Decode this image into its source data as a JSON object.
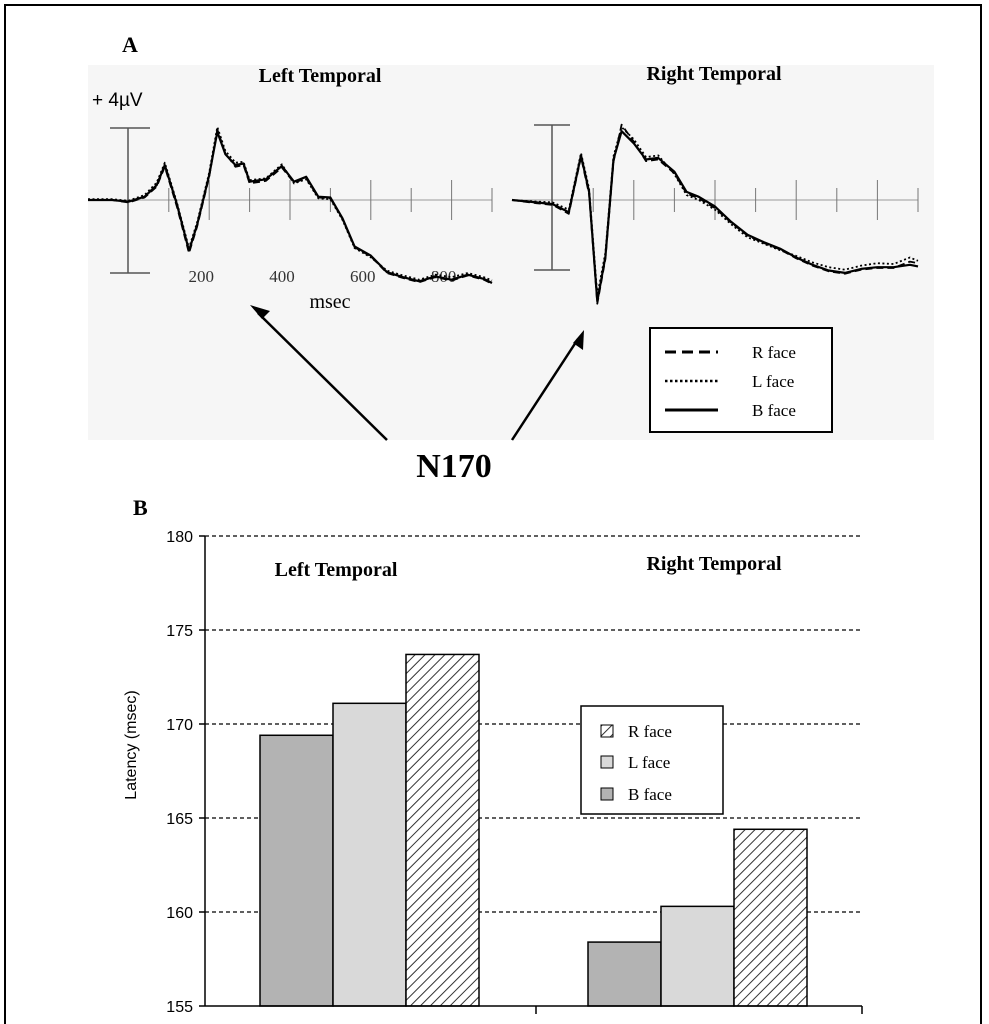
{
  "panel_a": {
    "label": "A",
    "left_title": "Left Temporal",
    "right_title": "Right Temporal",
    "scale_label": "+ 4µV",
    "x_ticks": [
      "200",
      "400",
      "600",
      "800"
    ],
    "x_unit": "msec",
    "callout": "N170",
    "legend": [
      {
        "label": "R face",
        "style": "dashed"
      },
      {
        "label": "L face",
        "style": "dotted"
      },
      {
        "label": "B face",
        "style": "solid"
      }
    ]
  },
  "panel_b": {
    "label": "B",
    "left_title": "Left Temporal",
    "right_title": "Right Temporal",
    "ylabel": "Latency (msec)",
    "legend": [
      {
        "label": "R face",
        "fill": "hatch"
      },
      {
        "label": "L face",
        "fill": "#d9d9d9"
      },
      {
        "label": "B face",
        "fill": "#b3b3b3"
      }
    ]
  },
  "chart_data": [
    {
      "type": "line",
      "title": "Left Temporal",
      "xlabel": "msec",
      "x_ticks": [
        200,
        400,
        600,
        800
      ],
      "xlim": [
        -100,
        900
      ],
      "scale_bar": "+ 4µV",
      "series": [
        {
          "name": "B face",
          "style": "solid",
          "x": [
            -100,
            -40,
            0,
            40,
            70,
            90,
            120,
            150,
            170,
            200,
            220,
            240,
            265,
            285,
            300,
            340,
            380,
            410,
            440,
            470,
            500,
            530,
            560,
            600,
            640,
            680,
            720,
            760,
            800,
            840,
            880,
            900
          ],
          "y": [
            0,
            0,
            -0.2,
            0.4,
            1.8,
            4.2,
            -0.5,
            -6.1,
            -3,
            3,
            8.2,
            5.5,
            4.2,
            4.4,
            2.2,
            2.5,
            4.1,
            2.2,
            2.8,
            0.4,
            0.3,
            -2.2,
            -5.6,
            -6.7,
            -8.7,
            -9.3,
            -9.8,
            -9.2,
            -9.6,
            -9.0,
            -9.5,
            -10.0
          ]
        },
        {
          "name": "L face",
          "style": "dotted",
          "x": [
            -100,
            -40,
            0,
            40,
            70,
            90,
            120,
            150,
            170,
            200,
            220,
            240,
            265,
            285,
            300,
            340,
            380,
            410,
            440,
            470,
            500,
            530,
            560,
            600,
            640,
            680,
            720,
            760,
            800,
            840,
            880,
            900
          ],
          "y": [
            0.1,
            0.1,
            -0.1,
            0.6,
            2.1,
            4.5,
            -0.3,
            -5.8,
            -2.7,
            3.3,
            8.8,
            5.9,
            4.5,
            4.6,
            2.4,
            2.6,
            4.3,
            2.0,
            2.5,
            0.2,
            0.1,
            -2.4,
            -5.8,
            -6.9,
            -8.5,
            -9.1,
            -9.6,
            -9.0,
            -9.3,
            -8.8,
            -9.3,
            -9.7
          ]
        },
        {
          "name": "R face",
          "style": "dashed",
          "x": [
            -100,
            -40,
            0,
            40,
            70,
            90,
            120,
            150,
            170,
            200,
            220,
            240,
            265,
            285,
            300,
            340,
            380,
            410,
            440,
            470,
            500,
            530,
            560,
            600,
            640,
            680,
            720,
            760,
            800,
            840,
            880,
            900
          ],
          "y": [
            0,
            0,
            -0.3,
            0.3,
            1.6,
            4.0,
            -0.8,
            -6.4,
            -3.2,
            2.8,
            8.5,
            5.6,
            4.0,
            4.2,
            2.0,
            2.3,
            3.9,
            2.1,
            2.6,
            0.3,
            0.2,
            -2.3,
            -5.7,
            -6.8,
            -8.8,
            -9.4,
            -9.9,
            -9.3,
            -9.7,
            -9.1,
            -9.6,
            -10.1
          ]
        }
      ]
    },
    {
      "type": "line",
      "title": "Right Temporal",
      "xlim": [
        -100,
        900
      ],
      "series": [
        {
          "name": "B face",
          "style": "solid",
          "x": [
            -100,
            -40,
            0,
            40,
            70,
            90,
            110,
            130,
            150,
            170,
            200,
            230,
            260,
            300,
            330,
            360,
            400,
            440,
            480,
            520,
            560,
            600,
            640,
            680,
            720,
            760,
            800,
            840,
            880,
            900
          ],
          "y": [
            0,
            -0.3,
            -0.5,
            -1.5,
            5.5,
            1.0,
            -12.5,
            -7.0,
            5.0,
            8.5,
            7.0,
            5.0,
            5.2,
            3.5,
            1.0,
            0.4,
            -0.8,
            -2.7,
            -4.3,
            -5.2,
            -6.0,
            -7.1,
            -8.0,
            -8.7,
            -9.0,
            -8.5,
            -8.3,
            -8.3,
            -8.0,
            -8.2
          ]
        },
        {
          "name": "L face",
          "style": "dotted",
          "x": [
            -100,
            -40,
            0,
            40,
            70,
            90,
            110,
            130,
            150,
            170,
            200,
            230,
            260,
            300,
            330,
            360,
            400,
            440,
            480,
            520,
            560,
            600,
            640,
            680,
            720,
            760,
            800,
            840,
            880,
            900
          ],
          "y": [
            0,
            -0.2,
            -0.3,
            -1.2,
            5.8,
            1.4,
            -11.8,
            -6.5,
            5.4,
            9.0,
            7.5,
            5.3,
            5.5,
            3.2,
            0.6,
            0.0,
            -1.2,
            -3.0,
            -4.6,
            -5.4,
            -6.2,
            -6.9,
            -7.7,
            -8.3,
            -8.6,
            -8.1,
            -7.8,
            -7.9,
            -7.1,
            -7.5
          ]
        },
        {
          "name": "R face",
          "style": "dashed",
          "x": [
            -100,
            -40,
            0,
            40,
            70,
            90,
            110,
            130,
            150,
            170,
            200,
            230,
            260,
            300,
            330,
            360,
            400,
            440,
            480,
            520,
            560,
            600,
            640,
            680,
            720,
            760,
            800,
            840,
            880,
            900
          ],
          "y": [
            0,
            -0.4,
            -0.6,
            -1.7,
            5.3,
            0.7,
            -12.8,
            -7.3,
            4.7,
            9.3,
            7.2,
            4.8,
            5.0,
            3.3,
            0.8,
            0.2,
            -1.0,
            -2.8,
            -4.4,
            -5.3,
            -6.1,
            -7.2,
            -8.1,
            -8.8,
            -9.1,
            -8.6,
            -8.4,
            -8.4,
            -7.6,
            -7.8
          ]
        }
      ]
    },
    {
      "type": "bar",
      "ylabel": "Latency (msec)",
      "ylim": [
        155,
        180
      ],
      "y_ticks": [
        155,
        160,
        165,
        170,
        175,
        180
      ],
      "grid": "horizontal dashed",
      "legend_position": "center-right",
      "categories": [
        "Left Temporal",
        "Right Temporal"
      ],
      "series": [
        {
          "name": "B face",
          "values": [
            169.4,
            158.4
          ]
        },
        {
          "name": "L face",
          "values": [
            171.1,
            160.3
          ]
        },
        {
          "name": "R face",
          "values": [
            173.7,
            164.4
          ]
        }
      ]
    }
  ]
}
